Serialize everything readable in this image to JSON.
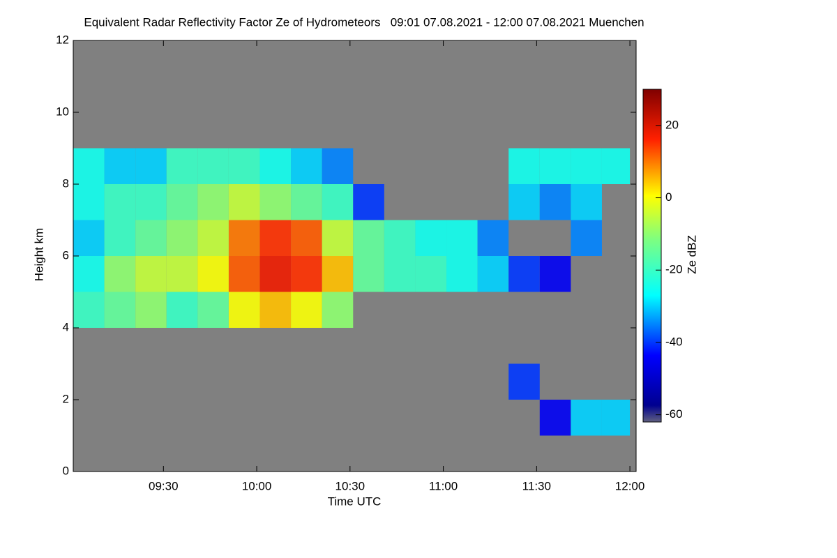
{
  "chart_data": {
    "type": "heatmap",
    "title": "Equivalent Radar Reflectivity Factor Ze of Hydrometeors   09:01 07.08.2021 - 12:00 07.08.2021 Muenchen",
    "x_label": "Time UTC",
    "y_label": "Height km",
    "colorbar_label": "Ze dBZ",
    "background": "#808080",
    "x": [
      541,
      551,
      561,
      571,
      581,
      591,
      601,
      611,
      621,
      631,
      641,
      651,
      661,
      671,
      681,
      691,
      701,
      711,
      720
    ],
    "y": [
      0,
      1,
      2,
      3,
      4,
      5,
      6,
      7,
      8,
      9,
      10,
      11,
      12
    ],
    "values": [
      [
        null,
        null,
        null,
        null,
        null,
        null,
        null,
        null,
        null,
        null,
        null,
        null,
        null,
        null,
        null,
        null,
        null,
        null
      ],
      [
        null,
        null,
        null,
        null,
        null,
        null,
        null,
        null,
        null,
        null,
        null,
        null,
        null,
        null,
        null,
        -45,
        -30,
        -30
      ],
      [
        null,
        null,
        null,
        null,
        null,
        null,
        null,
        null,
        null,
        null,
        null,
        null,
        null,
        null,
        -40,
        null,
        null,
        null
      ],
      [
        null,
        null,
        null,
        null,
        null,
        null,
        null,
        null,
        null,
        null,
        null,
        null,
        null,
        null,
        null,
        null,
        null,
        null
      ],
      [
        -20,
        -15,
        -10,
        -20,
        -15,
        0,
        5,
        0,
        -10,
        null,
        null,
        null,
        null,
        null,
        null,
        null,
        null,
        null
      ],
      [
        -25,
        -10,
        -5,
        -5,
        0,
        12,
        18,
        15,
        5,
        -15,
        -20,
        -20,
        -25,
        -30,
        -40,
        -45,
        null,
        null
      ],
      [
        -30,
        -20,
        -15,
        -10,
        -5,
        10,
        15,
        12,
        -5,
        -15,
        -20,
        -25,
        -25,
        -35,
        null,
        null,
        -35,
        null
      ],
      [
        -25,
        -20,
        -20,
        -15,
        -10,
        -5,
        -10,
        -15,
        -20,
        -40,
        null,
        null,
        null,
        null,
        -30,
        -35,
        -30,
        null
      ],
      [
        -25,
        -30,
        -30,
        -20,
        -20,
        -20,
        -25,
        -30,
        -35,
        null,
        null,
        null,
        null,
        null,
        -25,
        -25,
        -25,
        -25
      ],
      [
        null,
        null,
        null,
        null,
        null,
        null,
        null,
        null,
        null,
        null,
        null,
        null,
        null,
        null,
        null,
        null,
        null,
        null
      ],
      [
        null,
        null,
        null,
        null,
        null,
        null,
        null,
        null,
        null,
        null,
        null,
        null,
        null,
        null,
        null,
        null,
        null,
        null
      ],
      [
        null,
        null,
        null,
        null,
        null,
        null,
        null,
        null,
        null,
        null,
        null,
        null,
        null,
        null,
        null,
        null,
        null,
        null
      ]
    ],
    "xlim": [
      541,
      722
    ],
    "xticks": [
      {
        "value": 570,
        "label": "09:30"
      },
      {
        "value": 600,
        "label": "10:00"
      },
      {
        "value": 630,
        "label": "10:30"
      },
      {
        "value": 660,
        "label": "11:00"
      },
      {
        "value": 690,
        "label": "11:30"
      },
      {
        "value": 720,
        "label": "12:00"
      }
    ],
    "ylim": [
      0,
      12
    ],
    "yticks": [
      0,
      2,
      4,
      6,
      8,
      10,
      12
    ],
    "clim": [
      -62,
      30
    ],
    "cticks": [
      20,
      0,
      -20,
      -40,
      -60
    ]
  }
}
